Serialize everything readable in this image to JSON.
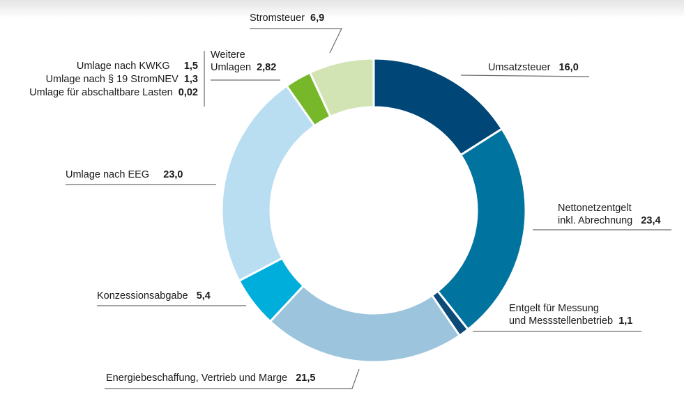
{
  "chart_data": {
    "type": "pie",
    "variant": "donut",
    "title": "",
    "unit": "%",
    "start": "top",
    "direction": "clockwise",
    "slices": [
      {
        "key": "umsatzsteuer",
        "label": "Umsatzsteuer",
        "value": 16.0,
        "value_text": "16,0",
        "color": "#004677"
      },
      {
        "key": "nettonetzentgelt",
        "label_lines": [
          "Nettonetzentgelt",
          "inkl. Abrechnung"
        ],
        "label": "Nettonetzentgelt inkl. Abrechnung",
        "value": 23.4,
        "value_text": "23,4",
        "color": "#00739e"
      },
      {
        "key": "messung",
        "label_lines": [
          "Entgelt für Messung",
          "und Messstellenbetrieb"
        ],
        "label": "Entgelt für Messung und Messstellenbetrieb",
        "value": 1.1,
        "value_text": "1,1",
        "color": "#0c4a78"
      },
      {
        "key": "energiebeschaffung",
        "label": "Energiebeschaffung, Vertrieb und Marge",
        "value": 21.5,
        "value_text": "21,5",
        "color": "#9cc4dd"
      },
      {
        "key": "konzession",
        "label": "Konzessionsabgabe",
        "value": 5.4,
        "value_text": "5,4",
        "color": "#00aedb"
      },
      {
        "key": "eeg",
        "label": "Umlage nach EEG",
        "value": 23.0,
        "value_text": "23,0",
        "color": "#b9def1"
      },
      {
        "key": "weitere",
        "label_lines": [
          "Weitere",
          "Umlagen"
        ],
        "label": "Weitere Umlagen",
        "value": 2.82,
        "value_text": "2,82",
        "color": "#76b82a"
      },
      {
        "key": "stromsteuer",
        "label": "Stromsteuer",
        "value": 6.9,
        "value_text": "6,9",
        "color": "#d3e4b4"
      }
    ],
    "sub_breakdown": {
      "parent": "Weitere Umlagen",
      "items": [
        {
          "label": "Umlage nach KWKG",
          "value": 1.5,
          "value_text": "1,5"
        },
        {
          "label": "Umlage nach § 19 StromNEV",
          "value": 1.3,
          "value_text": "1,3"
        },
        {
          "label": "Umlage für abschaltbare Lasten",
          "value": 0.02,
          "value_text": "0,02"
        }
      ]
    },
    "legend": "none"
  },
  "colors": {
    "leader_line": "#6b6b6b",
    "separator": "#ffffff"
  }
}
